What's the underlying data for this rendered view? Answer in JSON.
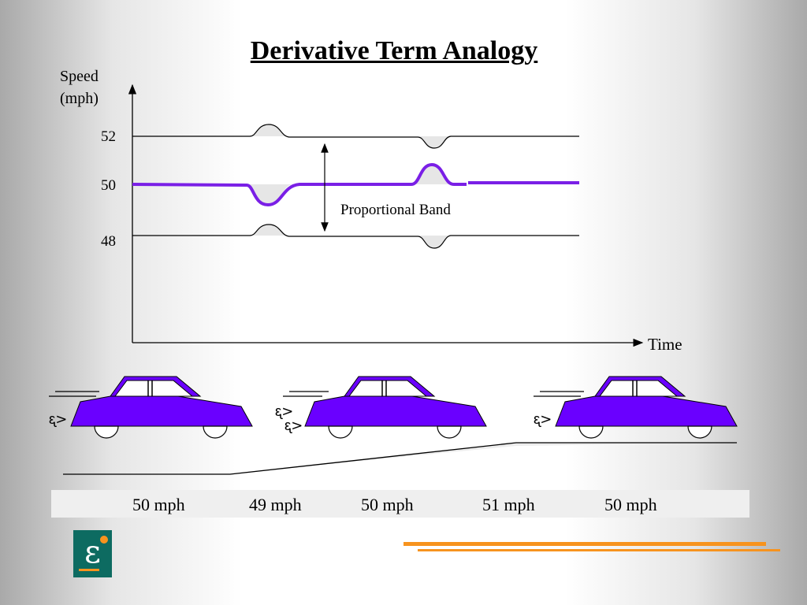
{
  "title": "Derivative Term Analogy",
  "axes": {
    "ylabel_line1": "Speed",
    "ylabel_line2": "(mph)",
    "xlabel": "Time",
    "ticks": [
      "52",
      "50",
      "48"
    ]
  },
  "band_label": "Proportional Band",
  "speeds": [
    "50 mph",
    "49 mph",
    "50 mph",
    "51 mph",
    "50 mph"
  ],
  "colors": {
    "speed_line": "#7a1fe6",
    "car_body": "#6a00ff",
    "accent": "#f7931e",
    "logo_bg": "#0d6b61"
  },
  "logo_glyph": "ε"
}
